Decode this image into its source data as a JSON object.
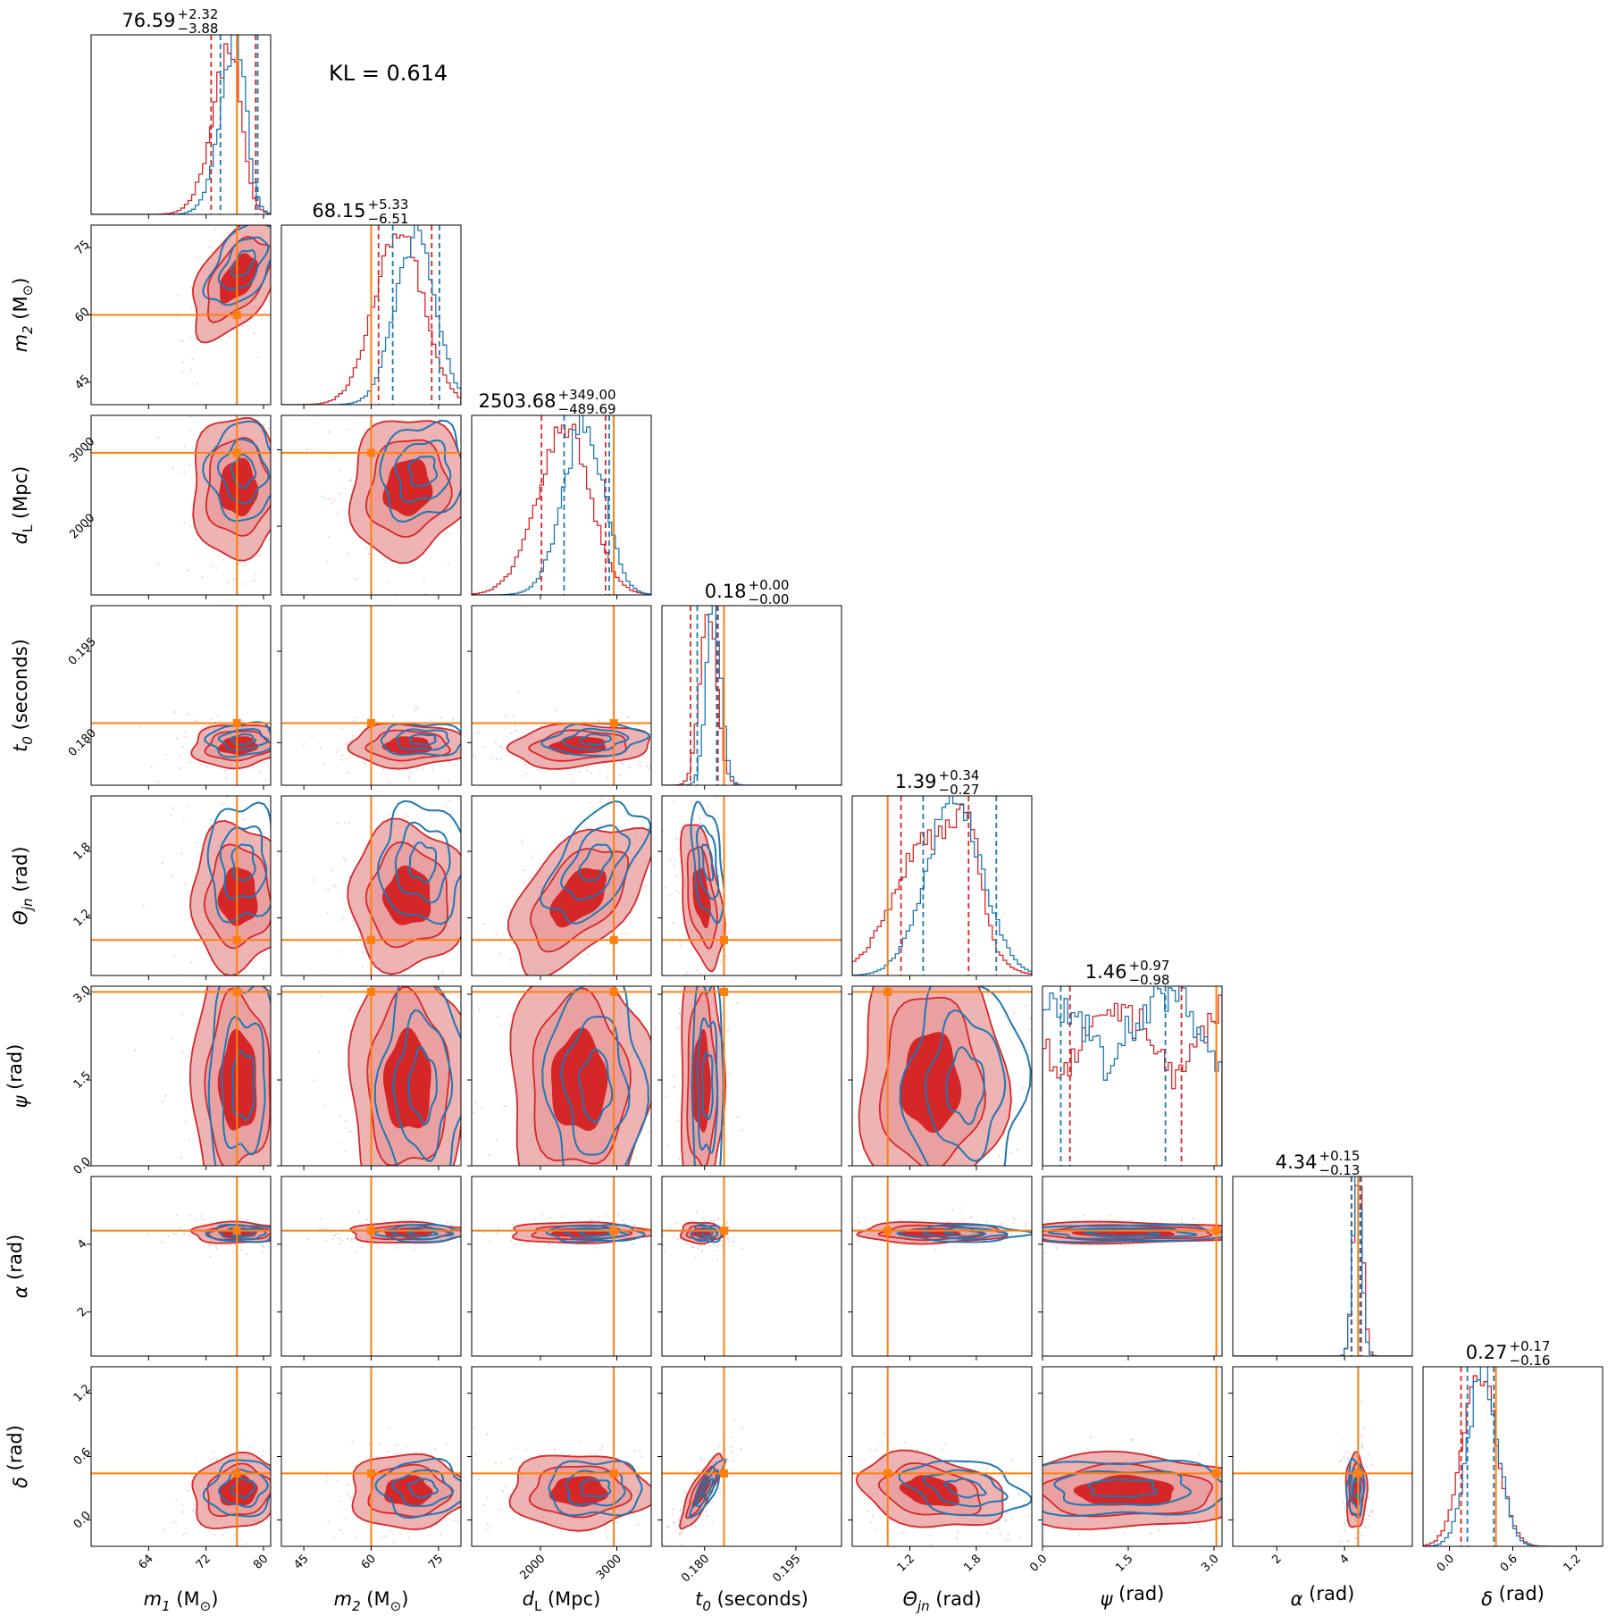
{
  "chart_data": {
    "type": "corner",
    "kl_text": "KL = 0.614",
    "colors": {
      "red": "#d62728",
      "red_fill": "#e8999a",
      "blue": "#1f77b4",
      "truth": "#ff7f0e"
    },
    "series": [
      {
        "color": "#d62728"
      },
      {
        "color": "#1f77b4"
      }
    ],
    "parameters": [
      {
        "key": "m1",
        "label_main": "m",
        "label_sub": "1",
        "label_unit": " (M",
        "label_unit_sub": "⊙",
        "label_unit_end": ")",
        "range": [
          56,
          81
        ],
        "ticks": [
          64,
          72,
          80
        ],
        "tick_labels": [
          "64",
          "72",
          "80"
        ],
        "truth": 76.3,
        "title_value": "76.59",
        "title_plus": "+2.32",
        "title_minus": "−3.88",
        "red": {
          "mean": 76.5,
          "sd": 3.0,
          "lo": 72.71,
          "hi": 78.91,
          "skew": -2.0
        },
        "blue": {
          "mean": 77.2,
          "sd": 2.6,
          "lo": 74.0,
          "hi": 79.2,
          "skew": -2.0
        }
      },
      {
        "key": "m2",
        "label_main": "m",
        "label_sub": "2",
        "label_unit": " (M",
        "label_unit_sub": "⊙",
        "label_unit_end": ")",
        "range": [
          40,
          80
        ],
        "ticks": [
          45,
          60,
          75
        ],
        "tick_labels": [
          "45",
          "60",
          "75"
        ],
        "truth": 60.0,
        "title_value": "68.15",
        "title_plus": "+5.33",
        "title_minus": "−6.51",
        "red": {
          "mean": 68.2,
          "sd": 6.0,
          "lo": 61.64,
          "hi": 73.48,
          "skew": -0.6
        },
        "blue": {
          "mean": 71.5,
          "sd": 5.0,
          "lo": 64.8,
          "hi": 75.2,
          "skew": -0.6
        }
      },
      {
        "key": "dL",
        "label_main": "d",
        "label_sub": "L",
        "label_unit": " (Mpc)",
        "label_unit_sub": "",
        "label_unit_end": "",
        "range": [
          1100,
          3450
        ],
        "ticks": [
          2000,
          3000
        ],
        "tick_labels": [
          "2000",
          "3000"
        ],
        "truth": 2960,
        "title_value": "2503.68",
        "title_plus": "+349.00",
        "title_minus": "−489.69",
        "red": {
          "mean": 2503.7,
          "sd": 420,
          "lo": 2013.99,
          "hi": 2852.68,
          "skew": -1.0
        },
        "blue": {
          "mean": 2720,
          "sd": 330,
          "lo": 2310,
          "hi": 2900,
          "skew": -1.0
        }
      },
      {
        "key": "t0",
        "label_main": "t",
        "label_sub": "0",
        "label_unit": " (seconds)",
        "label_unit_sub": "",
        "label_unit_end": "",
        "range": [
          0.173,
          0.2025
        ],
        "ticks": [
          0.18,
          0.195
        ],
        "tick_labels": [
          "0.180",
          "0.195"
        ],
        "truth": 0.1832,
        "title_value": "0.18",
        "title_plus": "+0.00",
        "title_minus": "−0.00",
        "red": {
          "mean": 0.1795,
          "sd": 0.0016,
          "lo": 0.1777,
          "hi": 0.1822,
          "skew": 0.8
        },
        "blue": {
          "mean": 0.1805,
          "sd": 0.0014,
          "lo": 0.1788,
          "hi": 0.182,
          "skew": 0.8
        }
      },
      {
        "key": "theta",
        "label_main": "Θ",
        "label_sub": "jn",
        "label_unit": " (rad)",
        "label_unit_sub": "",
        "label_unit_end": "",
        "range": [
          0.68,
          2.3
        ],
        "ticks": [
          1.2,
          1.8
        ],
        "tick_labels": [
          "1.2",
          "1.8"
        ],
        "truth": 1.0,
        "title_value": "1.39",
        "title_plus": "+0.34",
        "title_minus": "−0.27",
        "red": {
          "mean": 1.39,
          "sd": 0.3,
          "lo": 1.12,
          "hi": 1.73,
          "skew": 0.3
        },
        "blue": {
          "mean": 1.7,
          "sd": 0.28,
          "lo": 1.32,
          "hi": 1.98,
          "skew": -0.6
        }
      },
      {
        "key": "psi",
        "label_main": "ψ",
        "label_sub": "",
        "label_unit": " (rad)",
        "label_unit_sub": "",
        "label_unit_end": "",
        "range": [
          0.0,
          3.14
        ],
        "ticks": [
          0.0,
          1.5,
          3.0
        ],
        "tick_labels": [
          "0.0",
          "1.5",
          "3.0"
        ],
        "truth": 3.04,
        "title_value": "1.46",
        "title_plus": "+0.97",
        "title_minus": "−0.98",
        "red": {
          "mean": 1.46,
          "sd": 1.0,
          "lo": 0.48,
          "hi": 2.43,
          "skew": 0
        },
        "blue": {
          "mean": 1.4,
          "sd": 1.0,
          "lo": 0.32,
          "hi": 2.15,
          "skew": 0
        }
      },
      {
        "key": "alpha",
        "label_main": "α",
        "label_sub": "",
        "label_unit": " (rad)",
        "label_unit_sub": "",
        "label_unit_end": "",
        "range": [
          0.7,
          6.0
        ],
        "ticks": [
          2,
          4
        ],
        "tick_labels": [
          "2",
          "4"
        ],
        "truth": 4.4,
        "title_value": "4.34",
        "title_plus": "+0.15",
        "title_minus": "−0.13",
        "red": {
          "mean": 4.34,
          "sd": 0.14,
          "lo": 4.21,
          "hi": 4.49,
          "skew": 0
        },
        "blue": {
          "mean": 4.32,
          "sd": 0.13,
          "lo": 4.2,
          "hi": 4.46,
          "skew": 0
        }
      },
      {
        "key": "delta",
        "label_main": "δ",
        "label_sub": "",
        "label_unit": " (rad)",
        "label_unit_sub": "",
        "label_unit_end": "",
        "range": [
          -0.25,
          1.45
        ],
        "ticks": [
          0.0,
          0.6,
          1.2
        ],
        "tick_labels": [
          "0.0",
          "0.6",
          "1.2"
        ],
        "truth": 0.44,
        "title_value": "0.27",
        "title_plus": "+0.17",
        "title_minus": "−0.16",
        "red": {
          "mean": 0.27,
          "sd": 0.16,
          "lo": 0.11,
          "hi": 0.44,
          "skew": 0
        },
        "blue": {
          "mean": 0.3,
          "sd": 0.14,
          "lo": 0.17,
          "hi": 0.42,
          "skew": 0
        }
      }
    ]
  }
}
